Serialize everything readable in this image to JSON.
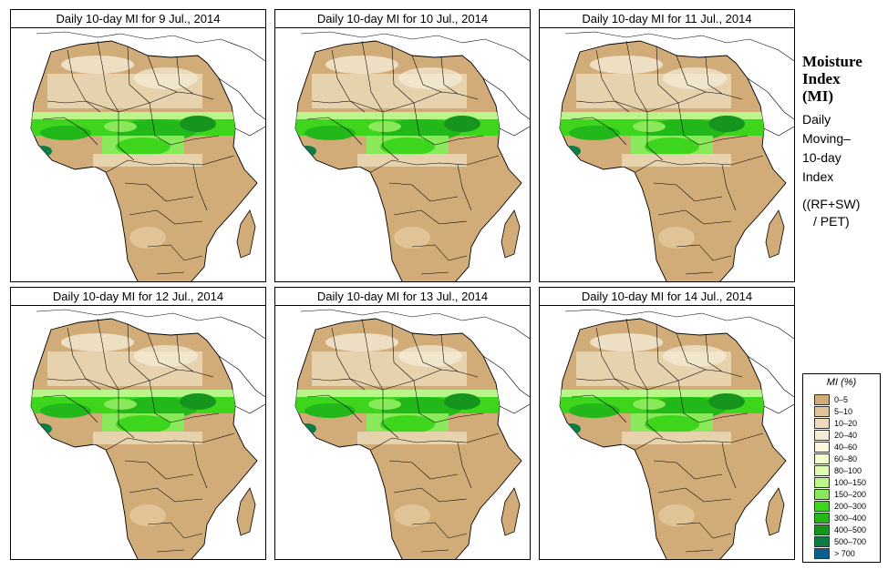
{
  "panels": [
    {
      "title": "Daily 10-day MI for  9 Jul., 2014"
    },
    {
      "title": "Daily 10-day MI for  10 Jul., 2014"
    },
    {
      "title": "Daily 10-day MI for  11 Jul., 2014"
    },
    {
      "title": "Daily 10-day MI for  12 Jul., 2014"
    },
    {
      "title": "Daily 10-day MI for  13 Jul., 2014"
    },
    {
      "title": "Daily 10-day MI for  14 Jul., 2014"
    }
  ],
  "side": {
    "heading_line1": "Moisture",
    "heading_line2": "Index",
    "heading_line3": "(MI)",
    "desc_line1": "Daily",
    "desc_line2": "Moving–",
    "desc_line3": "10-day",
    "desc_line4": "Index",
    "formula_line1": "((RF+SW)",
    "formula_line2": "/ PET)"
  },
  "legend": {
    "title": "MI (%)",
    "items": [
      {
        "label": "0–5",
        "color": "#d2ac78"
      },
      {
        "label": "5–10",
        "color": "#e0c396"
      },
      {
        "label": "10–20",
        "color": "#ecdcbc"
      },
      {
        "label": "20–40",
        "color": "#f5ecd7"
      },
      {
        "label": "40–60",
        "color": "#fbf7e2"
      },
      {
        "label": "60–80",
        "color": "#f3fccb"
      },
      {
        "label": "80–100",
        "color": "#defab2"
      },
      {
        "label": "100–150",
        "color": "#b9f58a"
      },
      {
        "label": "150–200",
        "color": "#8ae95a"
      },
      {
        "label": "200–300",
        "color": "#3ed61d"
      },
      {
        "label": "300–400",
        "color": "#22b81a"
      },
      {
        "label": "400–500",
        "color": "#15951e"
      },
      {
        "label": "500–700",
        "color": "#0e7c45"
      },
      {
        "label": "> 700",
        "color": "#0b5e8e"
      }
    ]
  }
}
